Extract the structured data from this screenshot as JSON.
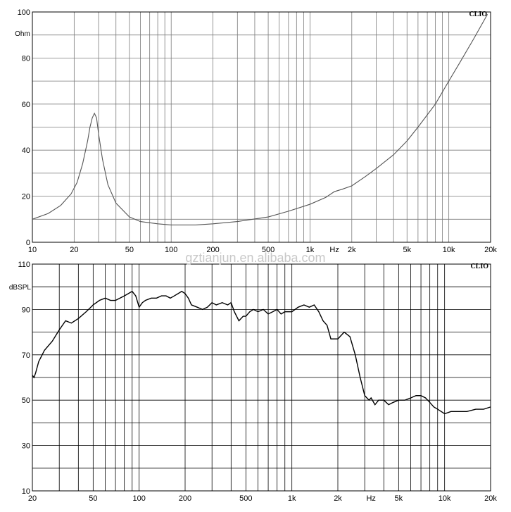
{
  "watermark": "gztianjun.en.alibaba.com",
  "chart_data": [
    {
      "type": "line",
      "brand": "CLIO",
      "ylabel": "Ohm",
      "xlabel": "Hz",
      "xscale": "log",
      "xlim": [
        10,
        20000
      ],
      "ylim": [
        0,
        100
      ],
      "grid": true,
      "x_tick_labels": [
        "10",
        "20",
        "50",
        "100",
        "200",
        "500",
        "1k",
        "Hz",
        "2k",
        "5k",
        "10k",
        "20k"
      ],
      "y_tick_labels": [
        "100",
        "80",
        "60",
        "40",
        "20",
        "0"
      ],
      "series": [
        {
          "x": [
            10,
            13,
            16,
            19,
            21,
            23,
            25,
            26,
            27,
            28,
            29,
            30,
            32,
            35,
            40,
            50,
            60,
            80,
            100,
            150,
            200,
            300,
            500,
            700,
            1000,
            1300,
            1500,
            1700,
            2000,
            2500,
            3000,
            4000,
            5000,
            6000,
            8000,
            10000,
            12000,
            15000,
            19000
          ],
          "y": [
            10,
            12.5,
            16,
            21,
            26,
            34,
            44,
            50,
            54,
            56,
            54,
            47,
            36,
            25,
            17,
            11,
            9,
            8,
            7.5,
            7.5,
            8,
            9,
            11,
            13.5,
            16.5,
            19.5,
            22,
            23,
            24.5,
            28.5,
            32,
            38,
            44,
            50,
            60,
            70,
            78,
            88,
            99
          ]
        }
      ]
    },
    {
      "type": "line",
      "brand": "CLIO",
      "ylabel": "dBSPL",
      "xlabel": "Hz",
      "xscale": "log",
      "xlim": [
        20,
        20000
      ],
      "ylim": [
        10,
        110
      ],
      "grid": true,
      "x_tick_labels": [
        "20",
        "50",
        "100",
        "200",
        "500",
        "1k",
        "2k",
        "Hz",
        "5k",
        "10k",
        "20k"
      ],
      "y_tick_labels": [
        "110",
        "dBSPL",
        "90",
        "70",
        "50",
        "30",
        "10"
      ],
      "series": [
        {
          "x": [
            20,
            20.5,
            21,
            22,
            24,
            27,
            30,
            33,
            36,
            40,
            45,
            50,
            55,
            60,
            65,
            70,
            75,
            80,
            85,
            90,
            95,
            100,
            105,
            110,
            120,
            130,
            140,
            150,
            160,
            170,
            180,
            190,
            200,
            210,
            220,
            240,
            260,
            280,
            300,
            320,
            350,
            380,
            400,
            420,
            450,
            480,
            500,
            530,
            560,
            600,
            650,
            700,
            750,
            800,
            850,
            900,
            950,
            1000,
            1100,
            1200,
            1300,
            1400,
            1500,
            1600,
            1700,
            1800,
            1900,
            2000,
            2200,
            2400,
            2600,
            2800,
            3000,
            3200,
            3300,
            3500,
            3700,
            4000,
            4300,
            4600,
            5000,
            5500,
            6000,
            6500,
            7000,
            7500,
            8000,
            8500,
            9000,
            9500,
            10000,
            11000,
            12000,
            14000,
            16000,
            18000,
            20000
          ],
          "y": [
            61,
            60,
            62,
            67,
            72,
            76,
            81,
            85,
            84,
            86,
            89,
            92,
            94,
            95,
            94,
            94,
            95,
            96,
            97,
            98,
            96,
            91,
            93,
            94,
            95,
            95,
            96,
            96,
            95,
            96,
            97,
            98,
            97,
            95,
            92,
            91,
            90,
            91,
            93,
            92,
            93,
            92,
            93,
            89,
            85,
            87,
            87,
            89,
            90,
            89,
            90,
            88,
            89,
            90,
            88,
            89,
            89,
            89,
            91,
            92,
            91,
            92,
            89,
            85,
            83,
            77,
            77,
            77,
            80,
            78,
            70,
            60,
            52,
            50,
            51,
            48,
            50,
            50,
            48,
            49,
            50,
            50,
            51,
            52,
            52,
            51,
            49,
            47,
            46,
            45,
            44,
            45,
            45,
            45,
            46,
            46,
            47
          ]
        }
      ]
    }
  ]
}
